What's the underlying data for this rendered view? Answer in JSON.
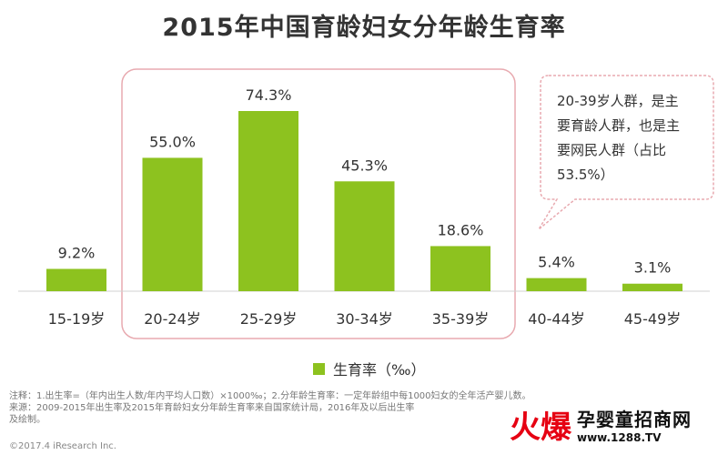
{
  "chart_data": {
    "type": "bar",
    "title": "2015年中国育龄妇女分年龄生育率",
    "categories": [
      "15-19岁",
      "20-24岁",
      "25-29岁",
      "30-34岁",
      "35-39岁",
      "40-44岁",
      "45-49岁"
    ],
    "values": [
      9.2,
      55.0,
      74.3,
      45.3,
      18.6,
      5.4,
      3.1
    ],
    "value_labels": [
      "9.2%",
      "55.0%",
      "74.3%",
      "45.3%",
      "18.6%",
      "5.4%",
      "3.1%"
    ],
    "series": [
      {
        "name": "生育率（‰）",
        "values": [
          9.2,
          55.0,
          74.3,
          45.3,
          18.6,
          5.4,
          3.1
        ]
      }
    ],
    "ylim": [
      0,
      80
    ],
    "grid": false,
    "legend_position": "bottom",
    "bar_color": "#8dc21f",
    "highlight_color": "#e8aab0",
    "highlight_categories": [
      "20-24岁",
      "25-29岁",
      "30-34岁",
      "35-39岁"
    ],
    "annotation": [
      "20-39岁人群，是主",
      "要育龄人群，也是主",
      "要网民人群（占比",
      "53.5%）"
    ]
  },
  "notes": [
    "注释：1.出生率=（年内出生人数/年内平均人口数）×1000‰；2.分年龄生育率：一定年龄组中每1000妇女的全年活产婴儿数。",
    "来源：2009-2015年出生率及2015年育龄妇女分年龄生育率来自国家统计局，2016年及以后出生率",
    "及绘制。"
  ],
  "copyright": "©2017.4 iResearch Inc.",
  "watermark": {
    "logo": "火爆",
    "name": "孕婴童招商网",
    "url": "www.1288.TV"
  }
}
